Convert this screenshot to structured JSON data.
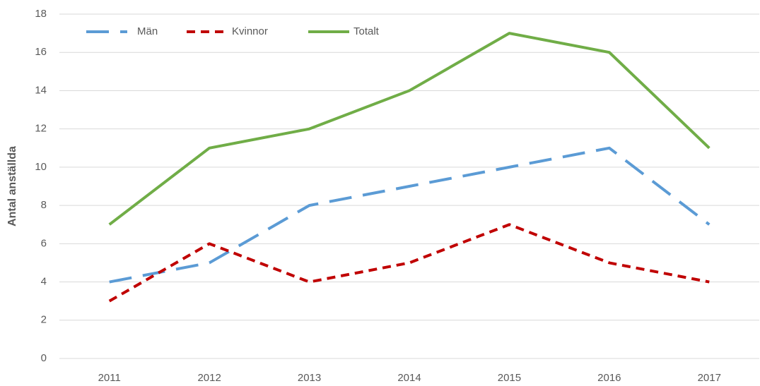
{
  "chart_data": {
    "type": "line",
    "y_label": "Antal anställda",
    "categories": [
      "2011",
      "2012",
      "2013",
      "2014",
      "2015",
      "2016",
      "2017"
    ],
    "series": [
      {
        "name": "Män",
        "color": "#5b9bd5",
        "dash": "long-dash",
        "values": [
          4,
          5,
          8,
          9,
          10,
          11,
          7
        ]
      },
      {
        "name": "Kvinnor",
        "color": "#c00000",
        "dash": "short-dash",
        "values": [
          3,
          6,
          4,
          5,
          7,
          5,
          4
        ]
      },
      {
        "name": "Totalt",
        "color": "#70ad47",
        "dash": "solid",
        "values": [
          7,
          11,
          12,
          14,
          17,
          16,
          11
        ]
      }
    ],
    "ylim": [
      0,
      18
    ],
    "yticks": [
      0,
      2,
      4,
      6,
      8,
      10,
      12,
      14,
      16,
      18
    ],
    "grid": true,
    "legend": "top-left"
  }
}
